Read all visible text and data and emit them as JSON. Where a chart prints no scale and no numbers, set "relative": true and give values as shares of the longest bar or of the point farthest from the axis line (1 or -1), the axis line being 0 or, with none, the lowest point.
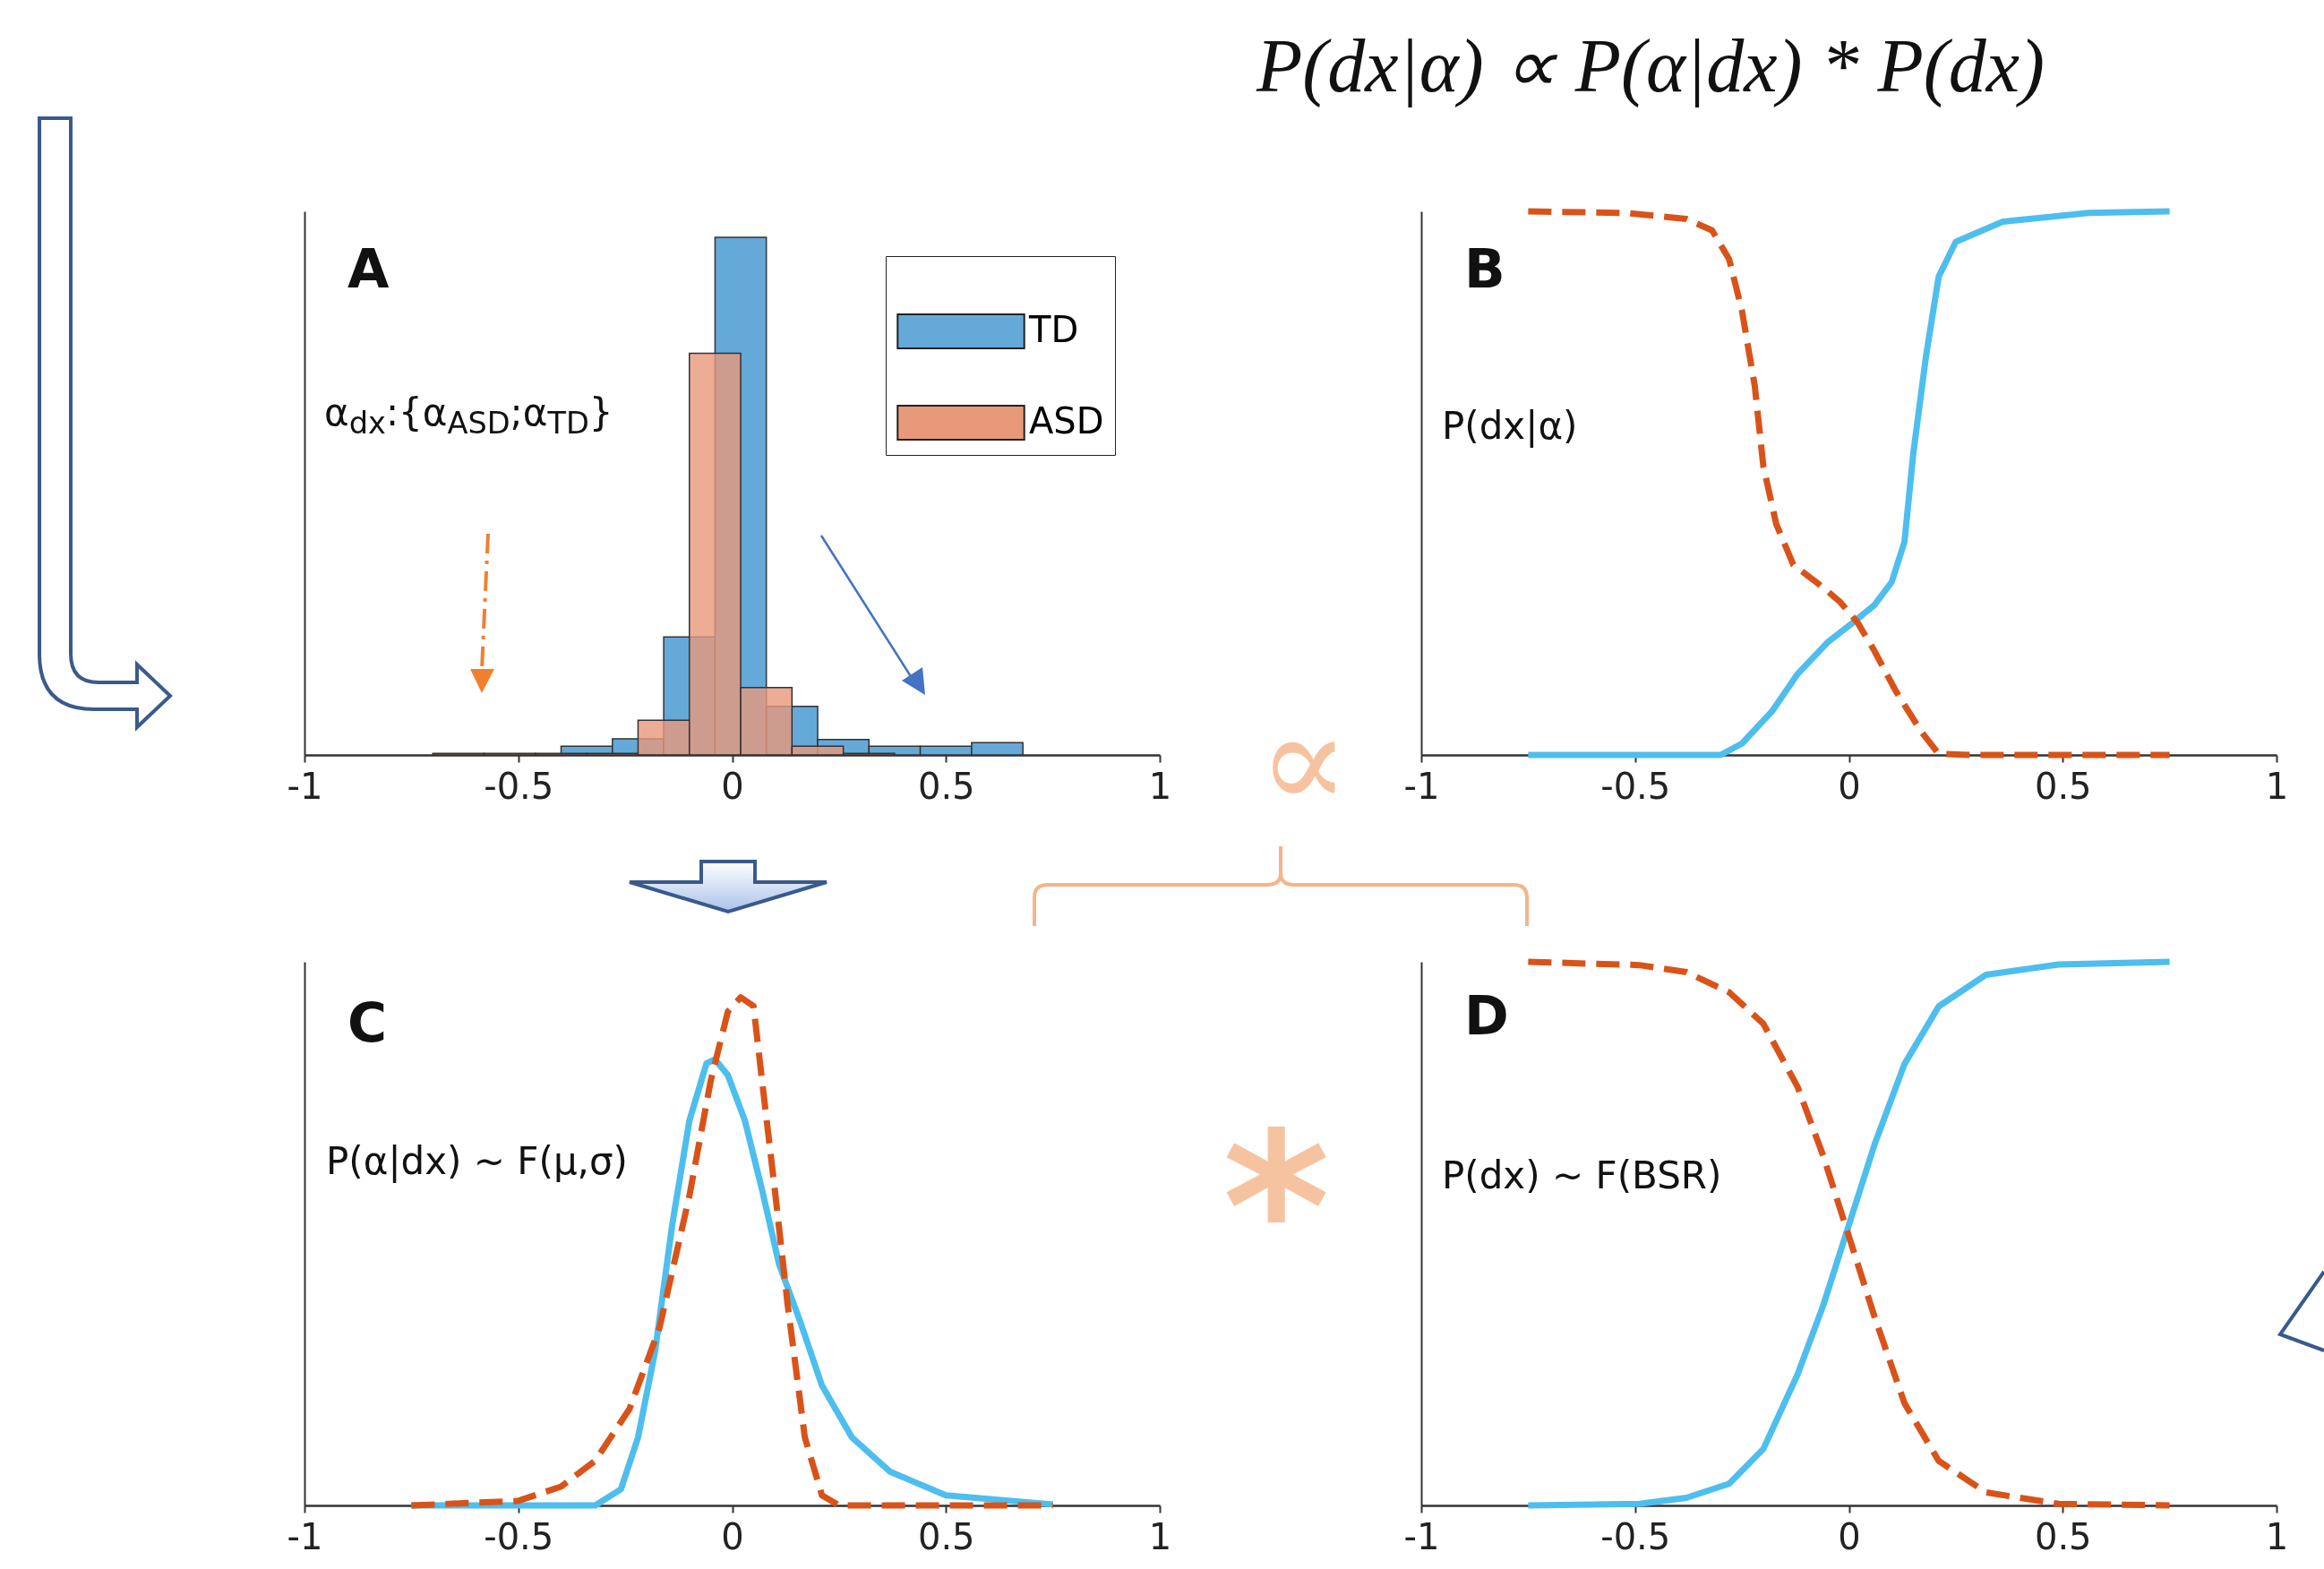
{
  "chart_data": [
    {
      "type": "bar",
      "relative": true,
      "xlim": [
        -1,
        1
      ],
      "xticks": [
        -1,
        -0.5,
        0,
        0.5,
        1
      ],
      "tick_labels": "x",
      "legend": "top right",
      "annotations": [
        "A",
        "α$_{dx}$:{α$_{ASD}$;α$_{TD}$}"
      ],
      "series": [
        {
          "name": "TD",
          "color": "#65a9d9",
          "x": [
            -0.34,
            -0.22,
            -0.1,
            0.02,
            0.14,
            0.26,
            0.38,
            0.5,
            0.62
          ],
          "values": [
            0.017,
            0.031,
            0.228,
            1,
            0.094,
            0.03,
            0.017,
            0.017,
            0.024
          ]
        },
        {
          "name": "ASD",
          "color": "#e8997a",
          "x": [
            -0.64,
            -0.52,
            -0.4,
            -0.28,
            -0.16,
            -0.04,
            0.08,
            0.2,
            0.32
          ],
          "values": [
            0.003,
            0.003,
            0.003,
            0.003,
            0.067,
            0.776,
            0.13,
            0.017,
            0.003
          ]
        }
      ]
    },
    {
      "type": "line",
      "relative": true,
      "xlim": [
        -1,
        1
      ],
      "xticks": [
        -1,
        -0.5,
        0,
        0.5,
        1
      ],
      "tick_labels": "x",
      "annotations": [
        "P(dx|α) ∝ P(α|dx) * P(dx)",
        "B",
        "P(dx|α)",
        "∝"
      ],
      "series": [
        {
          "color": "#4dbeee",
          "line_style": "solid",
          "x": [
            -0.75,
            -0.3,
            -0.25,
            -0.18,
            -0.12,
            -0.05,
            0.01,
            0.06,
            0.1,
            0.13,
            0.15,
            0.18,
            0.21,
            0.25,
            0.36,
            0.56,
            0.75
          ],
          "values": [
            0,
            0,
            0.021,
            0.08,
            0.149,
            0.207,
            0.244,
            0.276,
            0.318,
            0.392,
            0.551,
            0.732,
            0.88,
            0.944,
            0.981,
            0.997,
            1
          ]
        },
        {
          "color": "#d95319",
          "line_style": "dashed",
          "x": [
            -0.75,
            -0.52,
            -0.38,
            -0.32,
            -0.28,
            -0.25,
            -0.22,
            -0.2,
            -0.17,
            -0.13,
            -0.06,
            -0.02,
            0.02,
            0.06,
            0.11,
            0.17,
            0.21,
            0.29,
            0.75
          ],
          "values": [
            1,
            0.997,
            0.986,
            0.965,
            0.912,
            0.817,
            0.678,
            0.531,
            0.425,
            0.35,
            0.308,
            0.281,
            0.244,
            0.191,
            0.117,
            0.042,
            0.002,
            0,
            0
          ]
        }
      ]
    },
    {
      "type": "line",
      "relative": true,
      "xlim": [
        -1,
        1
      ],
      "xticks": [
        -1,
        -0.5,
        0,
        0.5,
        1
      ],
      "tick_labels": "x",
      "annotations": [
        "C",
        "P(α|dx) ~ F(μ,σ)",
        "*"
      ],
      "series": [
        {
          "color": "#4dbeee",
          "line_style": "solid",
          "x": [
            -0.75,
            -0.32,
            -0.26,
            -0.22,
            -0.18,
            -0.14,
            -0.1,
            -0.06,
            -0.04,
            -0.01,
            0.03,
            0.07,
            0.11,
            0.16,
            0.21,
            0.28,
            0.37,
            0.5,
            0.75
          ],
          "values": [
            0,
            0,
            0.032,
            0.134,
            0.304,
            0.553,
            0.757,
            0.87,
            0.878,
            0.847,
            0.757,
            0.621,
            0.474,
            0.36,
            0.236,
            0.134,
            0.066,
            0.02,
            0.002
          ]
        },
        {
          "color": "#d95319",
          "line_style": "dashed",
          "x": [
            -0.75,
            -0.5,
            -0.4,
            -0.32,
            -0.24,
            -0.17,
            -0.1,
            -0.05,
            -0.01,
            0.02,
            0.05,
            0.07,
            0.1,
            0.13,
            0.17,
            0.21,
            0.25,
            0.75
          ],
          "values": [
            0,
            0.009,
            0.037,
            0.088,
            0.19,
            0.349,
            0.609,
            0.836,
            0.972,
            1,
            0.983,
            0.836,
            0.62,
            0.394,
            0.134,
            0.02,
            0,
            0
          ]
        }
      ]
    },
    {
      "type": "line",
      "relative": true,
      "xlim": [
        -1,
        1
      ],
      "xticks": [
        -1,
        -0.5,
        0,
        0.5,
        1
      ],
      "tick_labels": "x",
      "annotations": [
        "D",
        "P(dx) ~ F(BSR)"
      ],
      "series": [
        {
          "color": "#4dbeee",
          "line_style": "solid",
          "x": [
            -0.75,
            -0.49,
            -0.38,
            -0.28,
            -0.2,
            -0.12,
            -0.06,
            0,
            0.06,
            0.13,
            0.21,
            0.32,
            0.49,
            0.75
          ],
          "values": [
            0,
            0.003,
            0.014,
            0.04,
            0.104,
            0.241,
            0.368,
            0.516,
            0.664,
            0.812,
            0.918,
            0.976,
            0.995,
            1
          ]
        },
        {
          "color": "#d95319",
          "line_style": "dashed",
          "x": [
            -0.75,
            -0.49,
            -0.38,
            -0.28,
            -0.2,
            -0.12,
            -0.06,
            0,
            0.06,
            0.13,
            0.21,
            0.32,
            0.49,
            0.75
          ],
          "values": [
            1,
            0.994,
            0.981,
            0.944,
            0.886,
            0.77,
            0.643,
            0.495,
            0.347,
            0.188,
            0.082,
            0.024,
            0.003,
            0
          ]
        }
      ]
    }
  ]
}
